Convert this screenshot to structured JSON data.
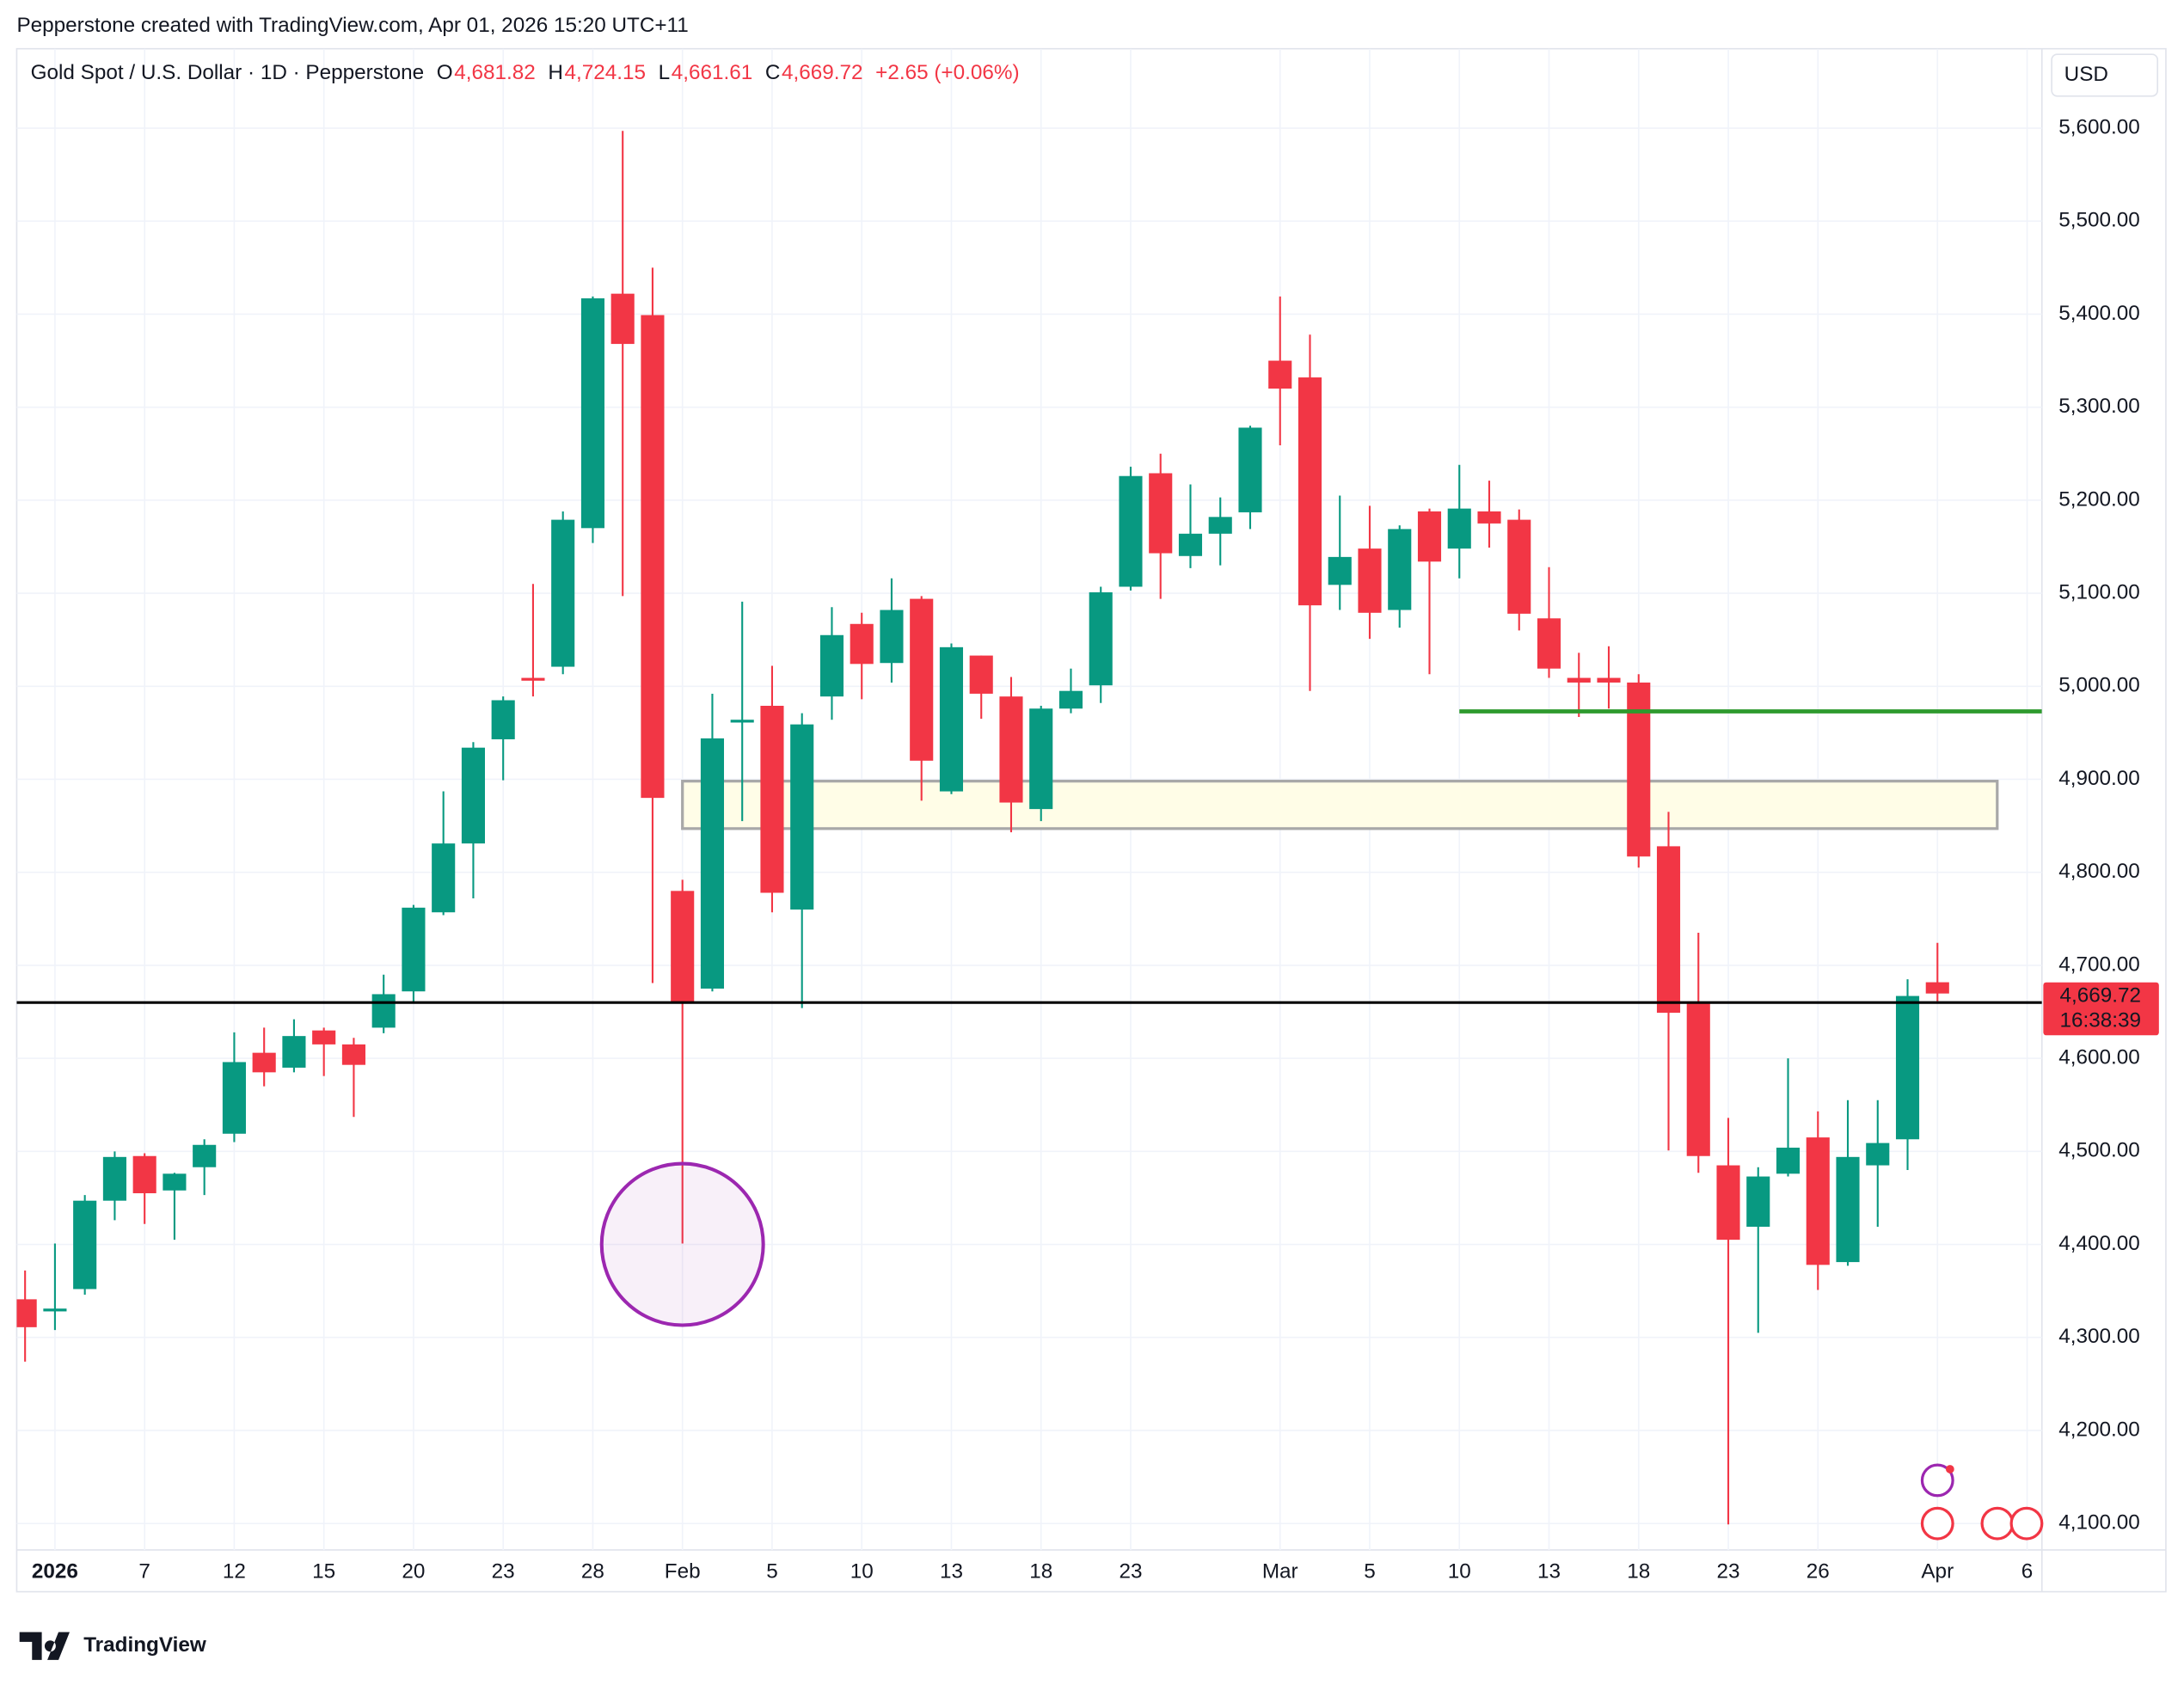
{
  "chart_data": {
    "type": "candlestick",
    "source": "Pepperstone created with TradingView.com, Apr 01, 2026 15:20 UTC+11",
    "title": "Gold Spot / U.S. Dollar · 1D · Pepperstone",
    "legend_values": [
      {
        "key": "O",
        "value": 4681.82,
        "label": "4,681.82"
      },
      {
        "key": "H",
        "value": 4724.15,
        "label": "4,724.15"
      },
      {
        "key": "L",
        "value": 4661.61,
        "label": "4,661.61"
      },
      {
        "key": "C",
        "value": 4669.72,
        "label": "4,669.72"
      }
    ],
    "change": {
      "value": 2.65,
      "label": "+2.65 (+0.06%)"
    },
    "currency": "USD",
    "last_price": {
      "value": 4669.72,
      "label": "4,669.72"
    },
    "countdown": "16:38:39",
    "brand": "TradingView",
    "up_color": "#089981",
    "down_color": "#f23645",
    "categories": [
      null,
      "2026",
      null,
      null,
      "7",
      null,
      null,
      "12",
      null,
      null,
      "15",
      null,
      null,
      "20",
      null,
      null,
      "23",
      null,
      null,
      "28",
      null,
      null,
      "Feb",
      null,
      null,
      "5",
      null,
      null,
      "10",
      null,
      null,
      "13",
      null,
      null,
      "18",
      null,
      null,
      "23",
      null,
      null,
      null,
      null,
      "Mar",
      null,
      null,
      "5",
      null,
      null,
      "10",
      null,
      null,
      "13",
      null,
      null,
      "18",
      null,
      null,
      "23",
      null,
      null,
      "26",
      null,
      null,
      null,
      "Apr",
      null,
      null,
      "6"
    ],
    "open": [
      4341,
      4328,
      4352,
      4447,
      4495,
      4458,
      4483,
      4519,
      4606,
      4590,
      4630,
      4615,
      4633,
      4672,
      4757,
      4831,
      4943,
      5009,
      5021,
      5170,
      5422,
      5399,
      4780,
      4675,
      4961,
      4979,
      4760,
      4989,
      5067,
      5025,
      5094,
      4887,
      5033,
      4989,
      4868,
      4976,
      5001,
      5107,
      5229,
      5140,
      5164,
      5187,
      5350,
      5332,
      5109,
      5148,
      5082,
      5188,
      5148,
      5188,
      5179,
      5073,
      5009,
      5009,
      5004,
      4828,
      4660,
      4485,
      4419,
      4476,
      4515,
      4381,
      4485,
      4513,
      4681.82,
      null,
      null,
      null
    ],
    "high": [
      4372,
      4401,
      4453,
      4500,
      4498,
      4477,
      4513,
      4628,
      4633,
      4642,
      4633,
      4622,
      4690,
      4765,
      4887,
      4940,
      4989,
      5110,
      5188,
      5419,
      5597,
      5450,
      4792,
      4992,
      5091,
      5022,
      4971,
      5085,
      5079,
      5116,
      5097,
      5046,
      5033,
      5010,
      4979,
      5019,
      5107,
      5236,
      5250,
      5217,
      5203,
      5280,
      5419,
      5378,
      5205,
      5194,
      5173,
      5191,
      5238,
      5221,
      5190,
      5128,
      5036,
      5043,
      5013,
      4865,
      4735,
      4536,
      4483,
      4600,
      4543,
      4555,
      4555,
      4685,
      4724.15,
      null,
      null,
      null
    ],
    "low": [
      4274,
      4308,
      4346,
      4426,
      4422,
      4405,
      4453,
      4510,
      4570,
      4585,
      4581,
      4537,
      4627,
      4660,
      4754,
      4772,
      4899,
      4989,
      5013,
      5154,
      5097,
      4681,
      4401,
      4672,
      4855,
      4757,
      4654,
      4964,
      4986,
      5004,
      4877,
      4884,
      4965,
      4843,
      4855,
      4971,
      4982,
      5103,
      5094,
      5127,
      5130,
      5169,
      5259,
      4995,
      5082,
      5051,
      5063,
      5013,
      5116,
      5149,
      5060,
      5009,
      4967,
      4976,
      4805,
      4501,
      4477,
      4099,
      4305,
      4473,
      4351,
      4377,
      4419,
      4480,
      4661.61,
      null,
      null,
      null
    ],
    "close": [
      4311,
      4331,
      4447,
      4494,
      4455,
      4476,
      4507,
      4596,
      4585,
      4624,
      4615,
      4593,
      4669,
      4762,
      4831,
      4934,
      4985,
      5006,
      5179,
      5417,
      5368,
      4880,
      4660,
      4944,
      4964,
      4778,
      4959,
      5055,
      5024,
      5082,
      4920,
      5042,
      4992,
      4875,
      4976,
      4995,
      5101,
      5226,
      5143,
      5164,
      5182,
      5278,
      5320,
      5087,
      5139,
      5079,
      5169,
      5134,
      5191,
      5175,
      5078,
      5019,
      5004,
      5004,
      4817,
      4649,
      4495,
      4405,
      4473,
      4504,
      4378,
      4494,
      4509,
      4667.07,
      4669.72,
      null,
      null,
      null
    ],
    "ylim": [
      4100,
      5600
    ],
    "yticks": [
      {
        "value": 4100,
        "label": "4,100.00"
      },
      {
        "value": 4200,
        "label": "4,200.00"
      },
      {
        "value": 4300,
        "label": "4,300.00"
      },
      {
        "value": 4400,
        "label": "4,400.00"
      },
      {
        "value": 4500,
        "label": "4,500.00"
      },
      {
        "value": 4600,
        "label": "4,600.00"
      },
      {
        "value": 4700,
        "label": "4,700.00"
      },
      {
        "value": 4800,
        "label": "4,800.00"
      },
      {
        "value": 4900,
        "label": "4,900.00"
      },
      {
        "value": 5000,
        "label": "5,000.00"
      },
      {
        "value": 5100,
        "label": "5,100.00"
      },
      {
        "value": 5200,
        "label": "5,200.00"
      },
      {
        "value": 5300,
        "label": "5,300.00"
      },
      {
        "value": 5400,
        "label": "5,400.00"
      },
      {
        "value": 5500,
        "label": "5,500.00"
      },
      {
        "value": 5600,
        "label": "5,600.00"
      }
    ],
    "grid": true,
    "horizontal_lines": [
      {
        "value": 4660,
        "from": 0,
        "color": "#000000"
      },
      {
        "value": 4973,
        "from": 48,
        "color": "#2e9a2e"
      }
    ],
    "zone": {
      "range": [
        4847,
        4898
      ],
      "from": 22,
      "to": 66
    },
    "circle": {
      "x": 22,
      "y": 4400,
      "color": "#9c27b0"
    }
  }
}
